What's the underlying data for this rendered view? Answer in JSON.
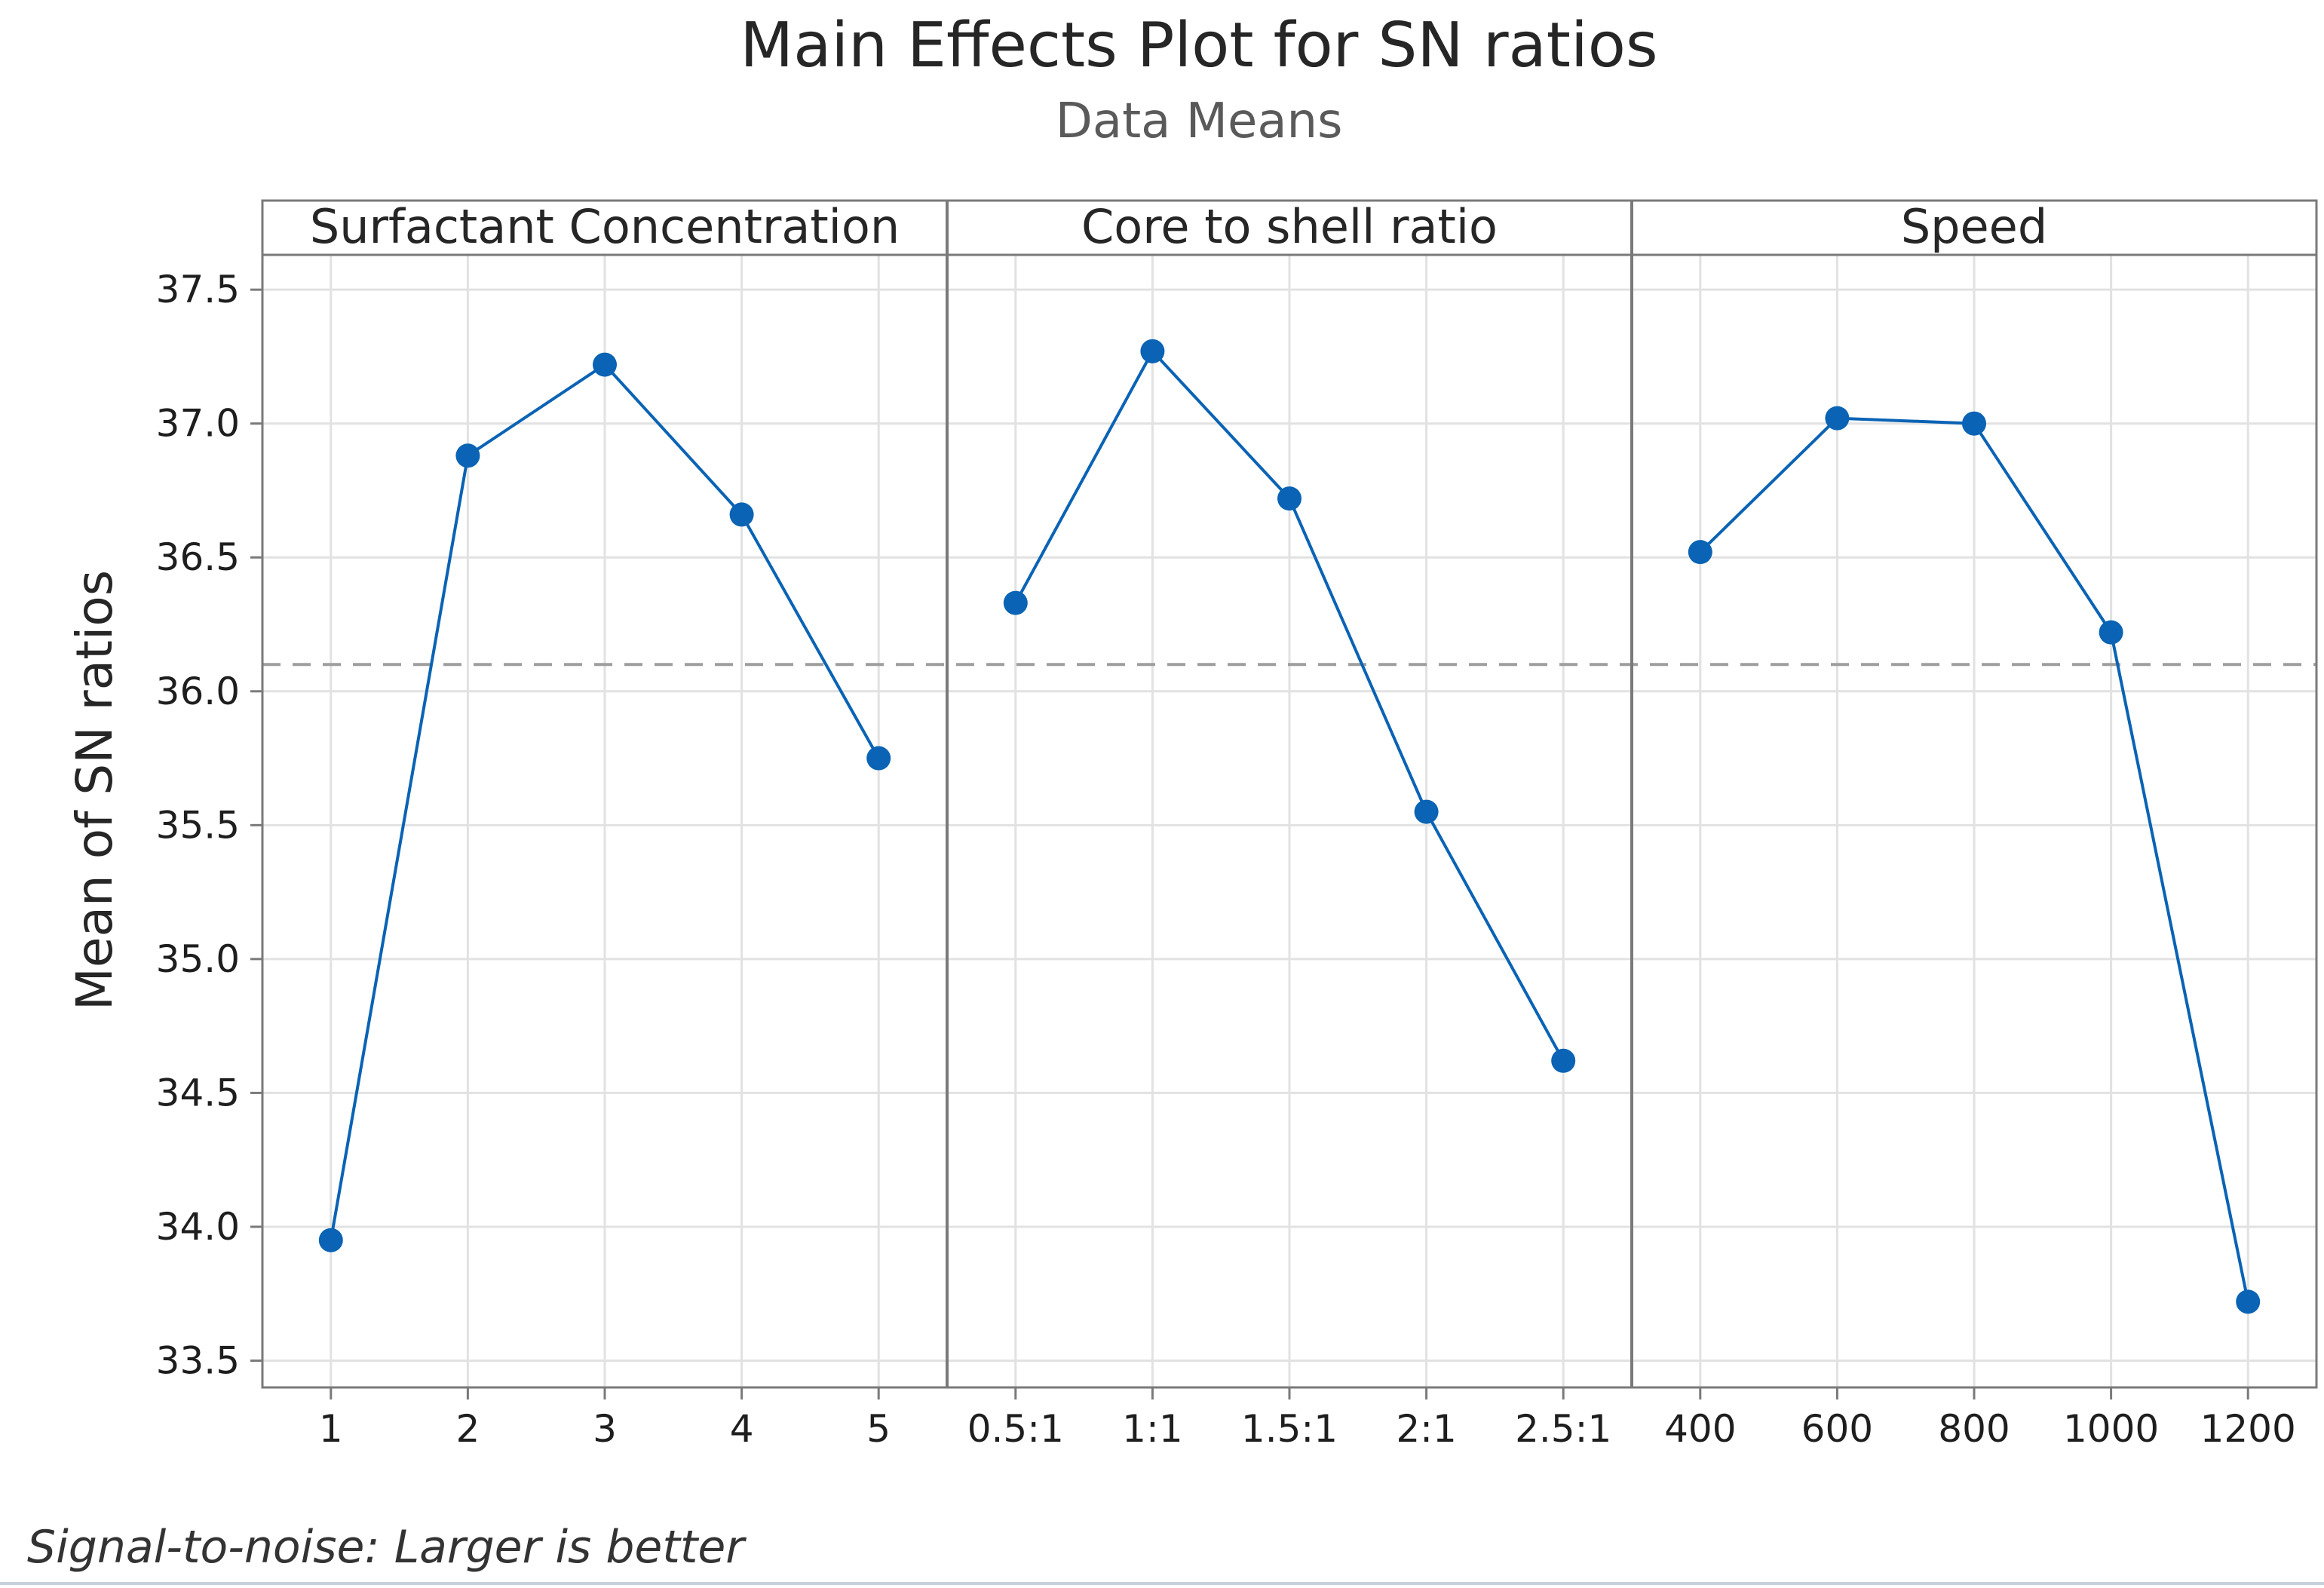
{
  "chart_data": {
    "type": "line",
    "title": "Main Effects Plot for SN ratios",
    "subtitle": "Data Means",
    "ylabel": "Mean of SN ratios",
    "ylim": [
      33.4,
      37.63
    ],
    "yticks": [
      "33.5",
      "34.0",
      "34.5",
      "35.0",
      "35.5",
      "36.0",
      "36.5",
      "37.0",
      "37.5"
    ],
    "reference_mean": 36.1,
    "footnote": "Signal-to-noise: Larger is better",
    "line_color": "#0a63b4",
    "reference_color": "#9e9e9e",
    "grid": true,
    "panels": [
      {
        "name": "Surfactant Concentration",
        "categories": [
          "1",
          "2",
          "3",
          "4",
          "5"
        ],
        "values": [
          33.95,
          36.88,
          37.22,
          36.66,
          35.75
        ]
      },
      {
        "name": "Core to shell ratio",
        "categories": [
          "0.5:1",
          "1:1",
          "1.5:1",
          "2:1",
          "2.5:1"
        ],
        "values": [
          36.33,
          37.27,
          36.72,
          35.55,
          34.62
        ]
      },
      {
        "name": "Speed",
        "categories": [
          "400",
          "600",
          "800",
          "1000",
          "1200"
        ],
        "values": [
          36.52,
          37.02,
          37.0,
          36.22,
          33.72
        ]
      }
    ]
  }
}
